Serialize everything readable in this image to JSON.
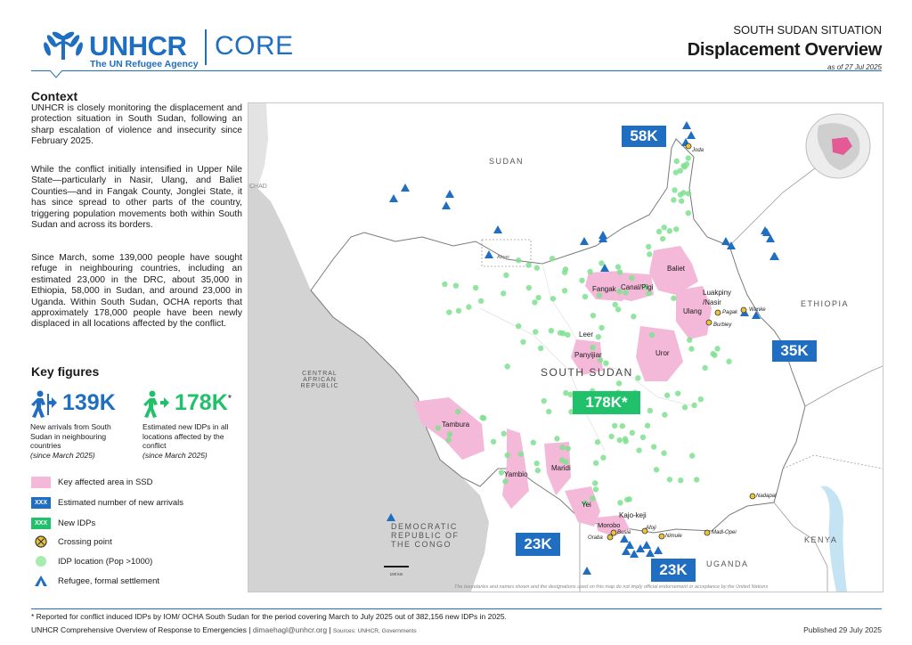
{
  "header": {
    "brand": "UNHCR",
    "tagline": "The UN Refugee Agency",
    "product": "CORE",
    "situation": "SOUTH SUDAN SITUATION",
    "title": "Displacement Overview",
    "as_of": "as of 27 Jul 2025"
  },
  "context": {
    "heading": "Context",
    "paragraphs": [
      "UNHCR is closely monitoring the displacement and protection situation in South Sudan, following an sharp escalation of violence and insecurity since February 2025.",
      "While the conflict initially intensified in Upper Nile State—particularly in Nasir, Ulang, and Baliet Counties—and in Fangak County, Jonglei State, it has since spread to other parts of the country, triggering population movements both within South Sudan and across its borders.",
      "Since March, some 139,000 people have sought refuge in neighbouring countries, including an estimated 23,000 in the DRC, about 35,000 in Ethiopia, 58,000 in Sudan, and around 23,000 in Uganda. Within South Sudan, OCHA reports that approximately 178,000 people have been newly displaced in all locations affected by the conflict."
    ]
  },
  "key_figures": {
    "heading": "Key figures",
    "arrivals": {
      "value": "139K",
      "desc": "New arrivals from South Sudan in neighbouring countries",
      "since": "(since March 2025)"
    },
    "idps": {
      "value": "178K",
      "asterisk": "*",
      "desc": "Estimated new IDPs in all locations affected by the conflict",
      "since": "(since March 2025)"
    }
  },
  "legend": [
    {
      "icon": "affected-area-swatch",
      "label": "Key affected area in SSD"
    },
    {
      "icon": "arrivals-swatch",
      "symbol": "XXX",
      "label": "Estimated number of new arrivals"
    },
    {
      "icon": "idps-swatch",
      "symbol": "XXX",
      "label": "New IDPs"
    },
    {
      "icon": "crossing-point-icon",
      "label": "Crossing point"
    },
    {
      "icon": "idp-location-icon",
      "label": "IDP location (Pop >1000)"
    },
    {
      "icon": "refugee-settlement-icon",
      "label": "Refugee, formal settlement"
    }
  ],
  "map": {
    "countries": [
      "SUDAN",
      "CHAD",
      "CENTRAL",
      "AFRICAN",
      "REPUBLIC",
      "ETHIOPIA",
      "DEMOCRATIC",
      "REPUBLIC OF",
      "THE CONGO",
      "UGANDA",
      "KENYA",
      "SOUTH SUDAN"
    ],
    "abyei": "Abyei",
    "areas": [
      "Baliet",
      "Fangak",
      "Canal/Pigi",
      "Luakpiny",
      "/Nasir",
      "Ulang",
      "Leer",
      "Panyijiar",
      "Uror",
      "Tambura",
      "Yambio",
      "Maridi",
      "Yei",
      "Kajo-keji",
      "Morobo"
    ],
    "crossings": [
      "Joda",
      "Pagak",
      "Wanke",
      "Burbiey",
      "Nadapal",
      "Oraba",
      "Busia",
      "Afoji",
      "Nimule",
      "Madi-Opei"
    ],
    "arrivals_labels": [
      "58K",
      "35K",
      "23K",
      "23K"
    ],
    "idp_label": "178K*",
    "scale": "100 km",
    "disclaimer": "The boundaries and names shown and the designations used on this map do not imply official endorsement or acceptance by the United Nations"
  },
  "colors": {
    "unhcr_blue": "#1f6ec1",
    "idp_green": "#21c16b",
    "affected_pink": "#f4b8d9",
    "idp_dot": "#7fe08f",
    "grey_land": "#d3d3d3"
  },
  "footer": {
    "note": "* Reported for conflict induced IDPs by IOM/ OCHA South Sudan for the period covering March to July 2025 out of 382,156 new IDPs in 2025.",
    "org": "UNHCR Comprehensive Overview of Response to Emergencies",
    "email": "dimaehagl@unhcr.org",
    "sources": "Sources: UNHCR, Governments",
    "published": "Published 29 July 2025"
  }
}
